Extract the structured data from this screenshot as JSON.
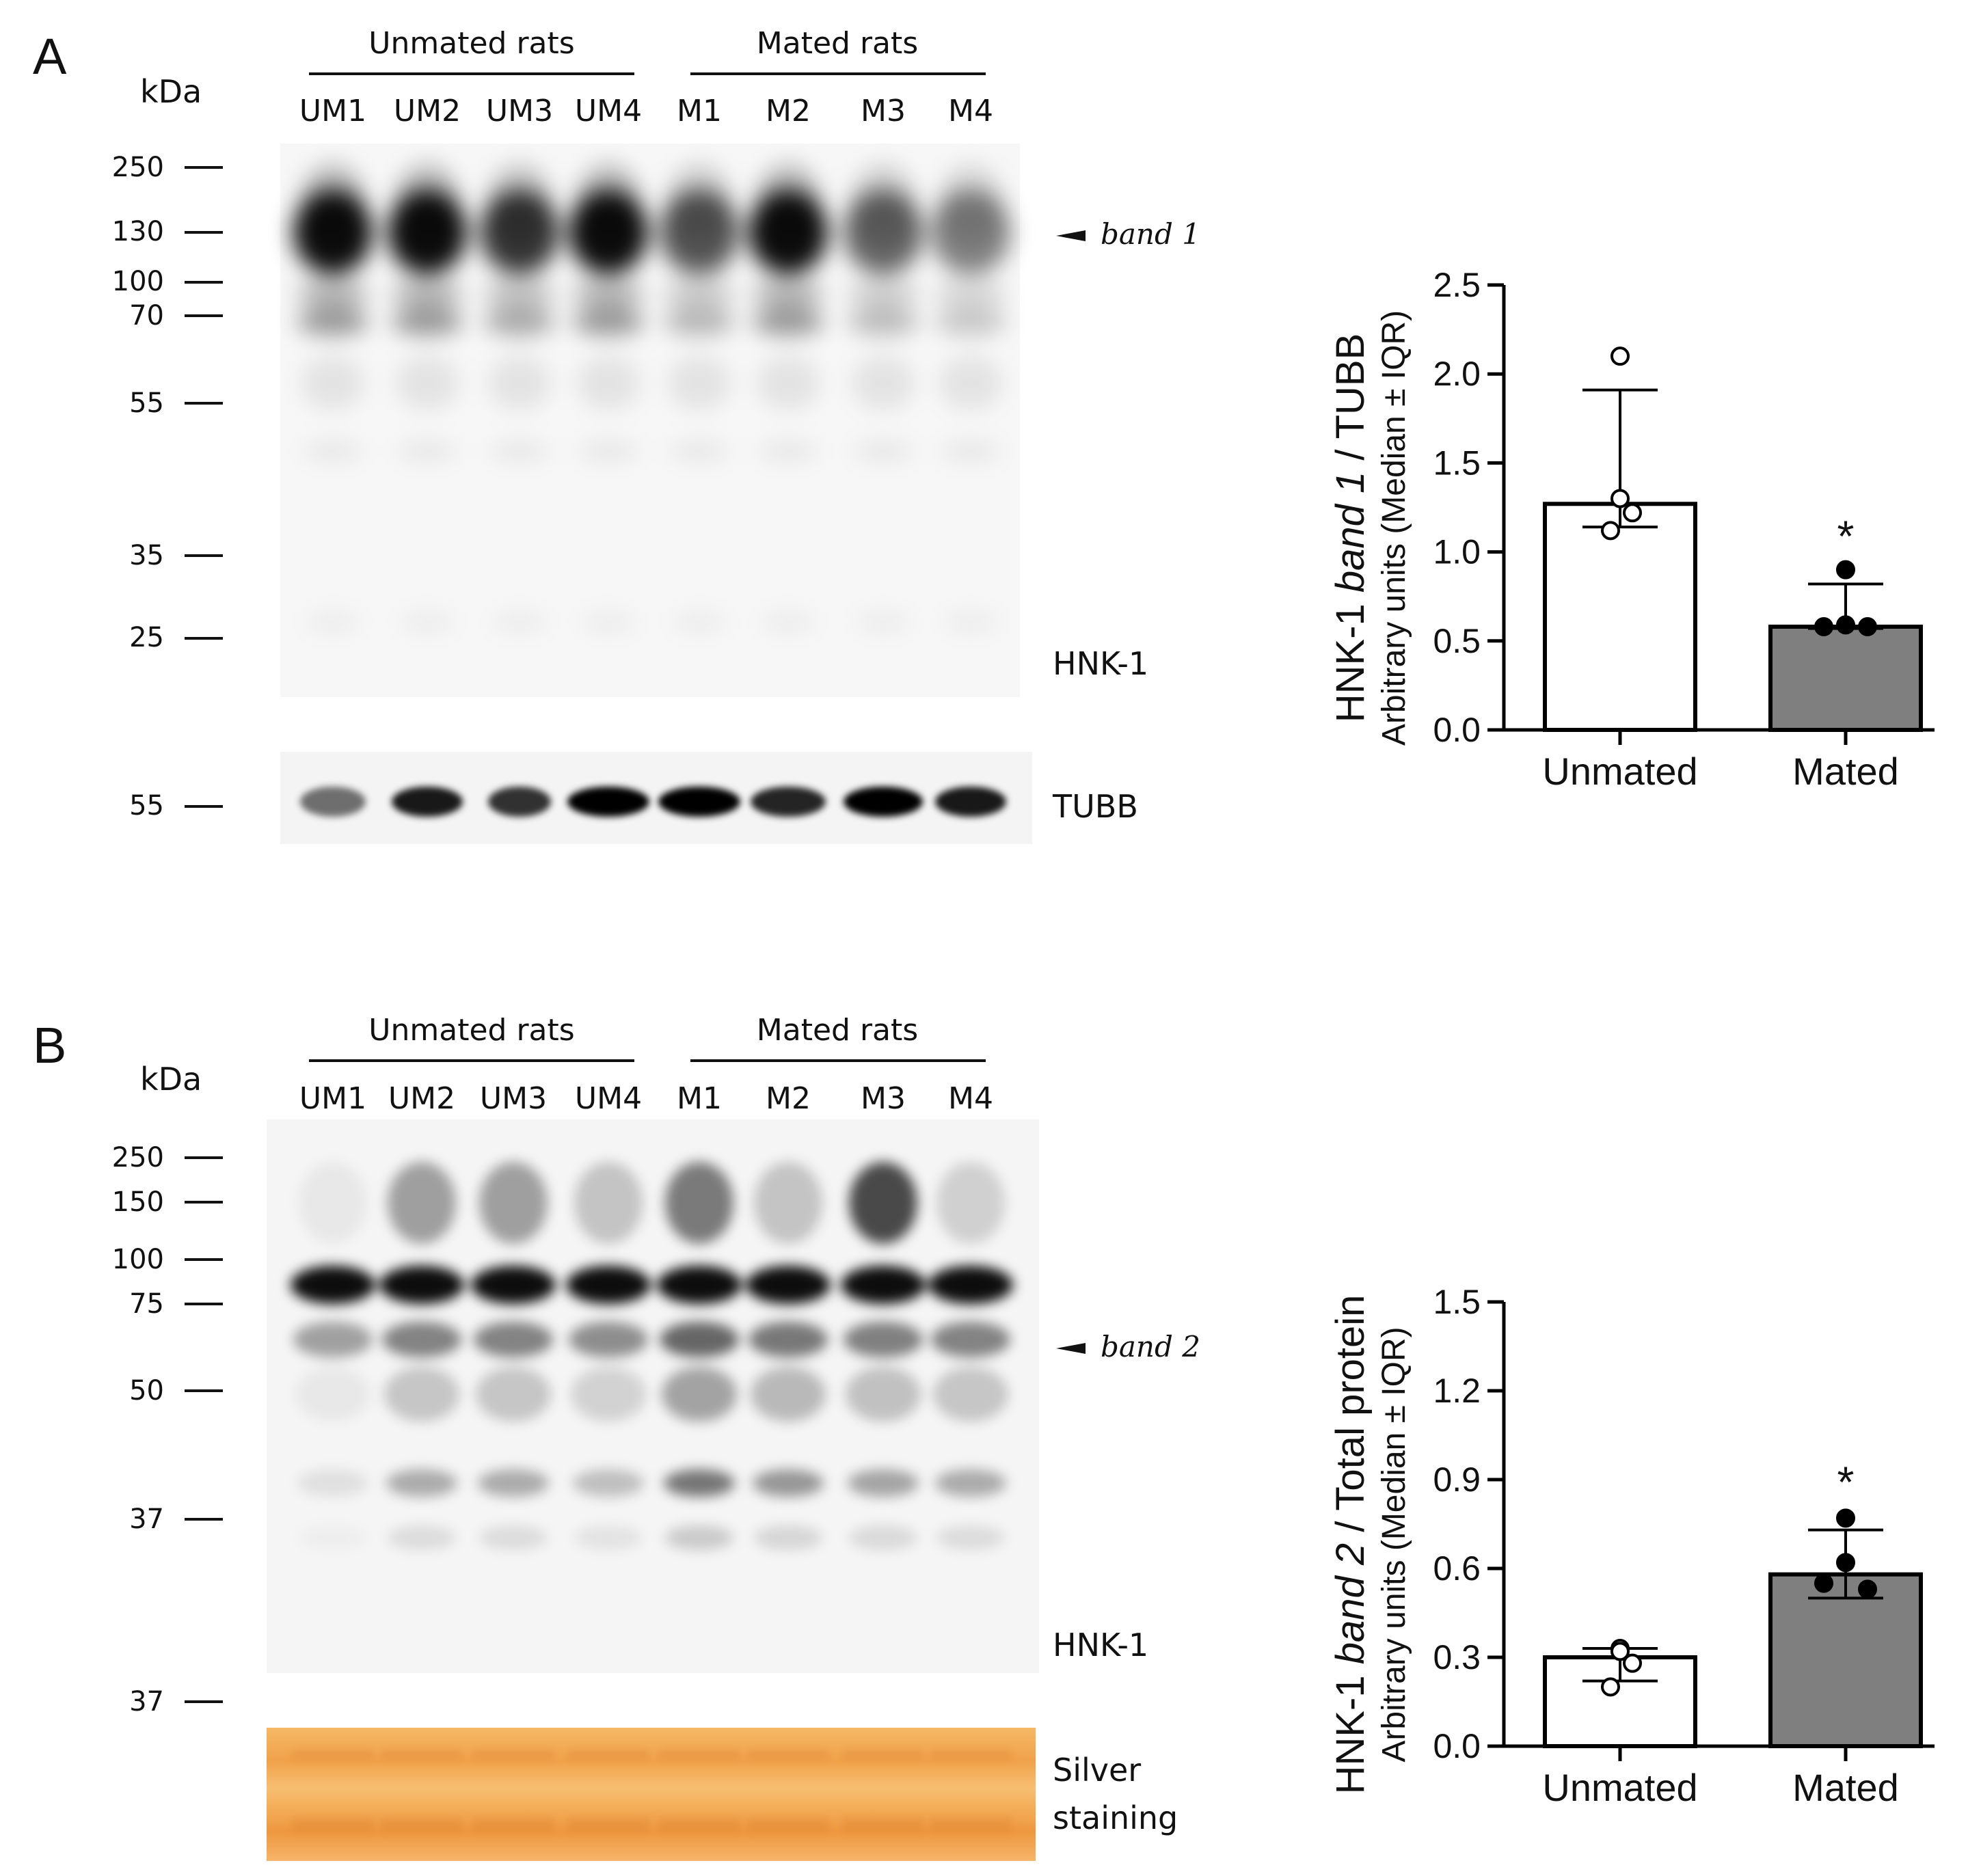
{
  "colors": {
    "axis": "#000000",
    "bar_unmated": "#ffffff",
    "bar_mated": "#7f7f7f",
    "silver_stain": "#f2a64a"
  },
  "panels": [
    {
      "letter": "A",
      "kda_label": "kDa",
      "group_labels": [
        "Unmated rats",
        "Mated rats"
      ],
      "lane_labels": [
        "UM1",
        "UM2",
        "UM3",
        "UM4",
        "M1",
        "M2",
        "M3",
        "M4"
      ],
      "markers": [
        "250",
        "130",
        "100",
        "70",
        "55",
        "35",
        "25"
      ],
      "lower_marker": "55",
      "band_label": "band 1",
      "blot_label": "HNK-1",
      "lower_label_lines": [
        "TUBB"
      ]
    },
    {
      "letter": "B",
      "kda_label": "kDa",
      "group_labels": [
        "Unmated rats",
        "Mated rats"
      ],
      "lane_labels": [
        "UM1",
        "UM2",
        "UM3",
        "UM4",
        "M1",
        "M2",
        "M3",
        "M4"
      ],
      "markers": [
        "250",
        "150",
        "100",
        "75",
        "50",
        "37"
      ],
      "lower_marker": "37",
      "band_label": "band 2",
      "blot_label": "HNK-1",
      "lower_label_lines": [
        "Silver",
        "staining"
      ]
    }
  ],
  "chart_data": [
    {
      "type": "bar",
      "categories": [
        "Unmated",
        "Mated"
      ],
      "values": [
        1.27,
        0.58
      ],
      "error_low": [
        1.14,
        0.57
      ],
      "error_high": [
        1.91,
        0.82
      ],
      "points": [
        [
          2.1,
          1.3,
          1.22,
          1.12
        ],
        [
          0.9,
          0.59,
          0.58,
          0.58
        ]
      ],
      "significance": [
        "",
        "*"
      ],
      "ylim": [
        0.0,
        2.5
      ],
      "yticks": [
        "0.0",
        "0.5",
        "1.0",
        "1.5",
        "2.0",
        "2.5"
      ],
      "ylabel_parts": [
        "HNK-1 ",
        "band 1",
        " / TUBB"
      ],
      "ylabel_sub": "Arbitrary units (Median ± IQR)"
    },
    {
      "type": "bar",
      "categories": [
        "Unmated",
        "Mated"
      ],
      "values": [
        0.3,
        0.58
      ],
      "error_low": [
        0.22,
        0.5
      ],
      "error_high": [
        0.33,
        0.73
      ],
      "points": [
        [
          0.33,
          0.32,
          0.28,
          0.2
        ],
        [
          0.77,
          0.62,
          0.55,
          0.53
        ]
      ],
      "significance": [
        "",
        "*"
      ],
      "ylim": [
        0.0,
        1.5
      ],
      "yticks": [
        "0.0",
        "0.3",
        "0.6",
        "0.9",
        "1.2",
        "1.5"
      ],
      "ylabel_parts": [
        "HNK-1 ",
        "band 2",
        " / Total protein"
      ],
      "ylabel_sub": "Arbitrary units (Median ± IQR)"
    }
  ]
}
